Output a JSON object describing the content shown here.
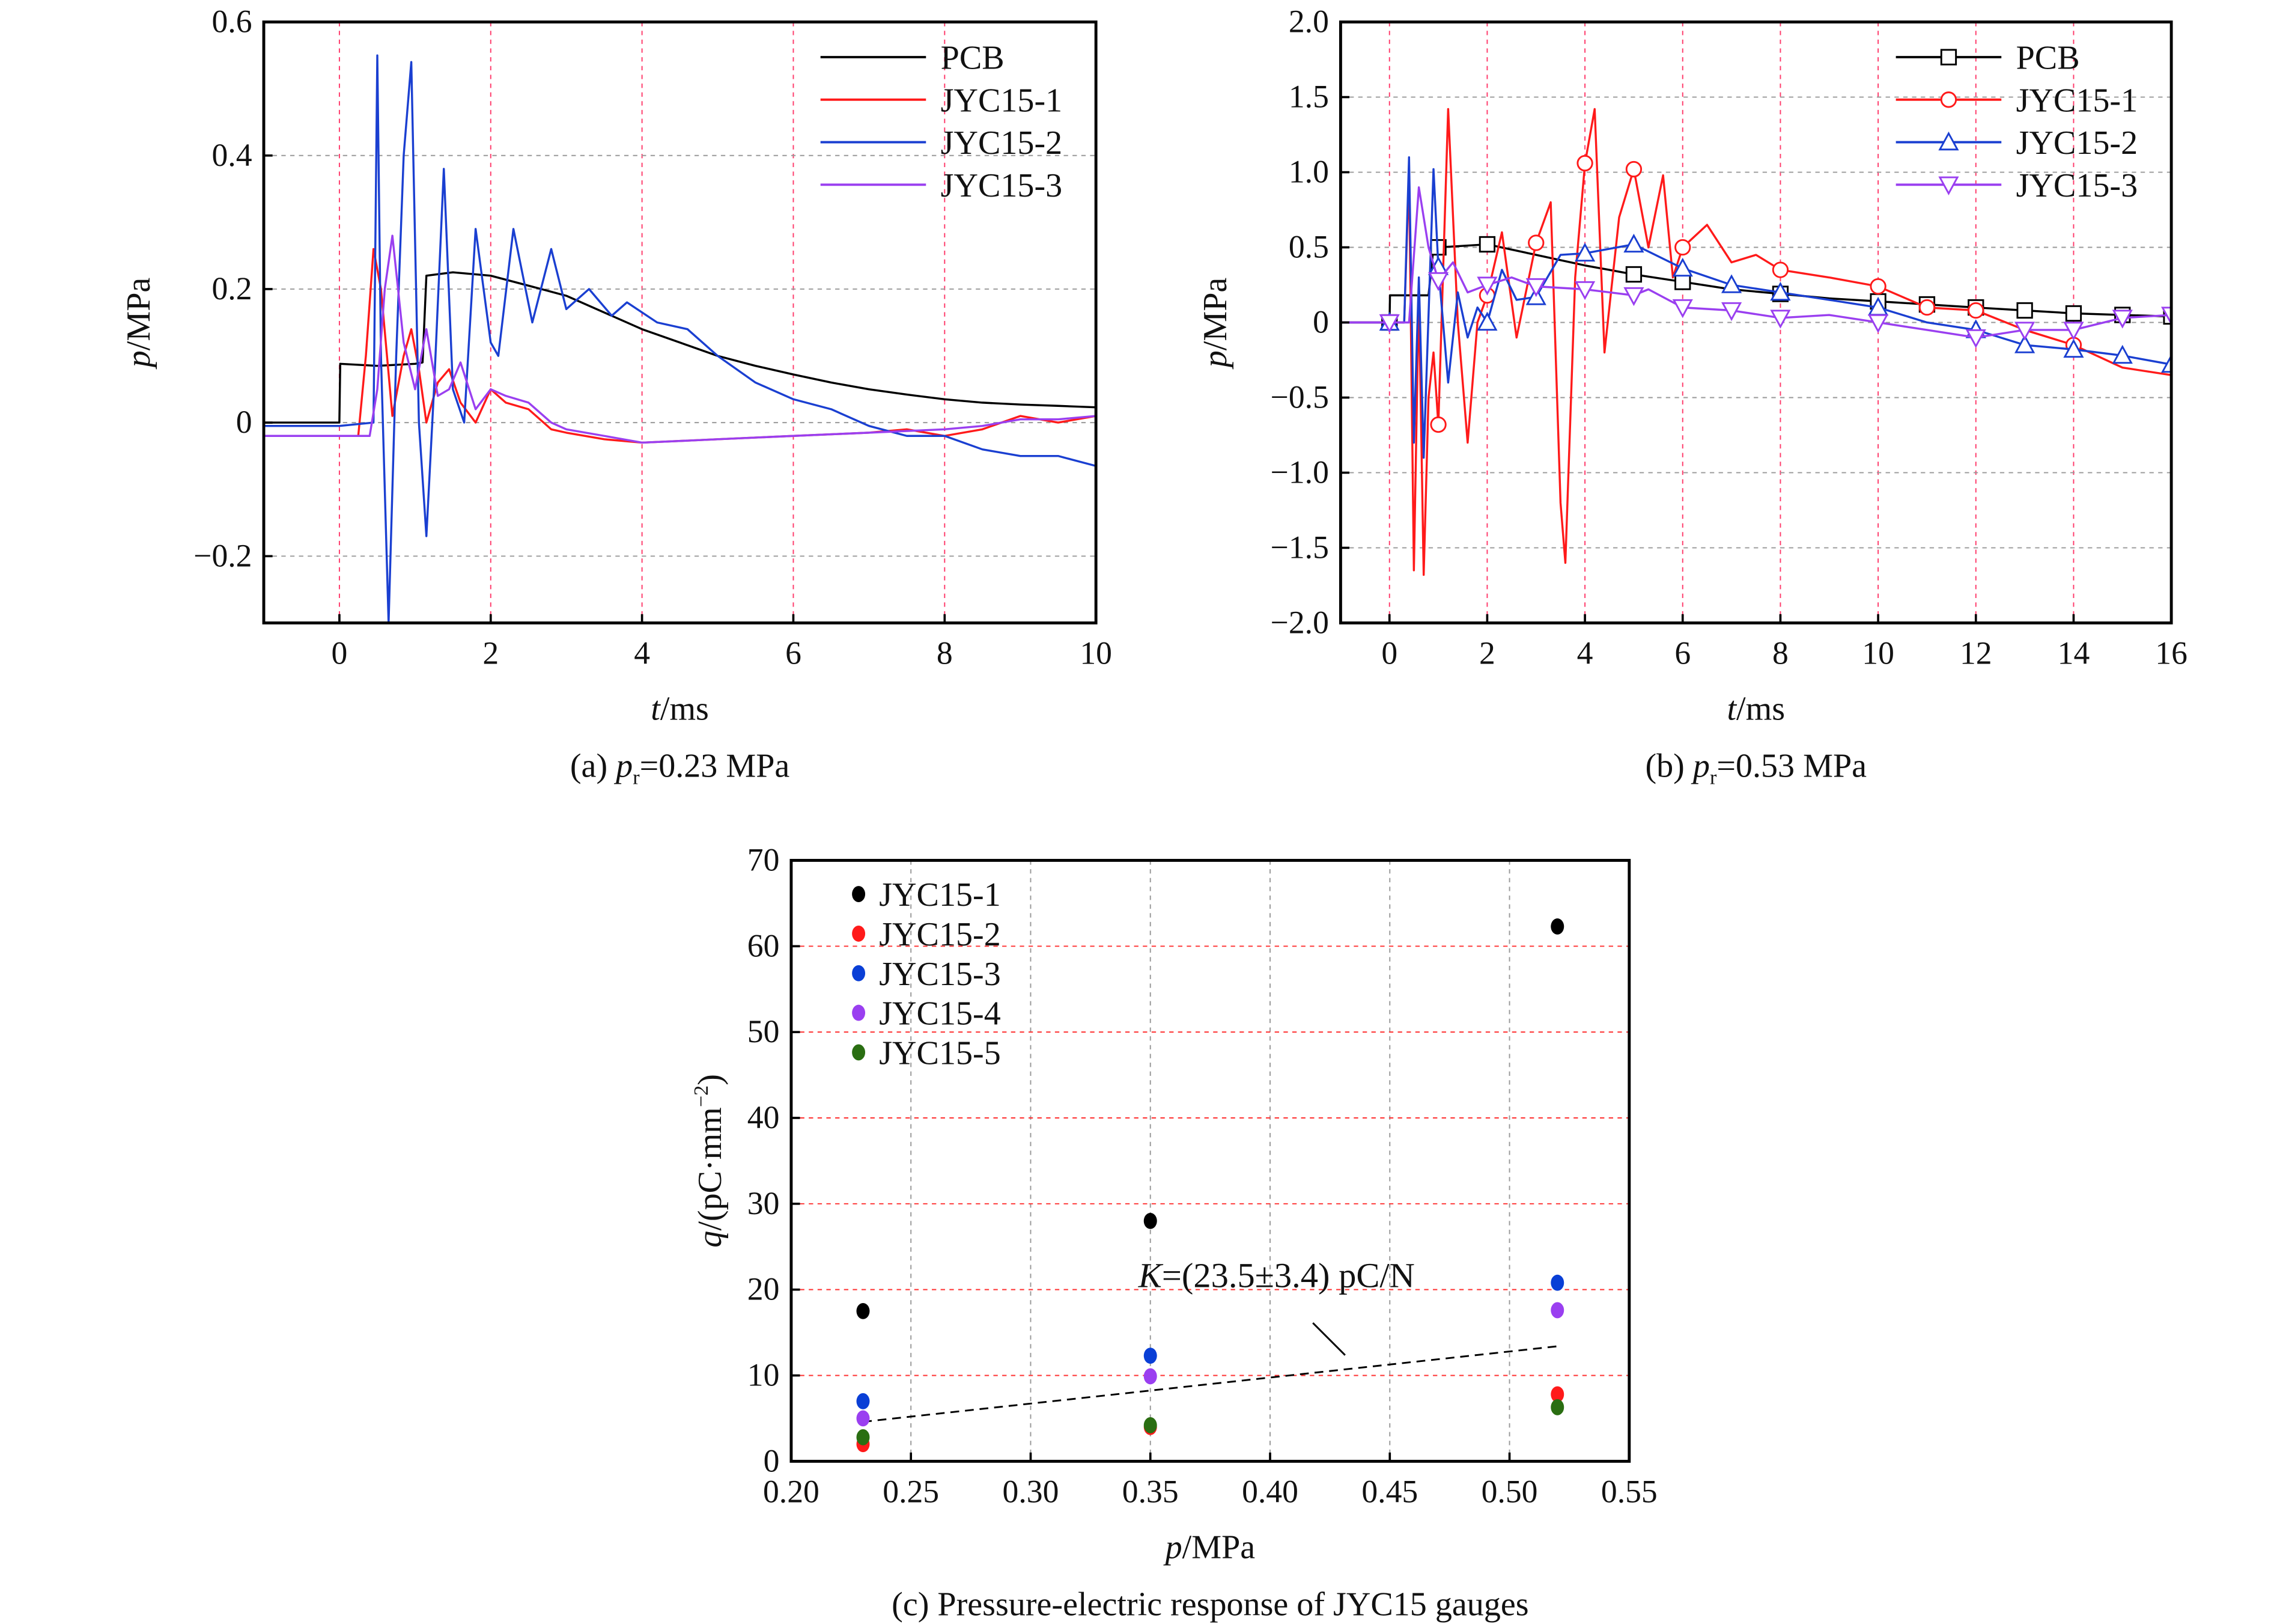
{
  "chart_data": [
    {
      "id": "a",
      "type": "line",
      "caption": "(a) p_r=0.23 MPa",
      "caption_parts": {
        "prefix": "(a) ",
        "var": "p",
        "sub": "r",
        "suffix": "=0.23 MPa"
      },
      "xlabel": {
        "var": "t",
        "unit": "/ms"
      },
      "ylabel": {
        "var": "p",
        "unit": "/MPa"
      },
      "xlim": [
        -1,
        10
      ],
      "ylim": [
        -0.3,
        0.6
      ],
      "xticks": [
        0,
        2,
        4,
        6,
        8,
        10
      ],
      "xtick_labels": [
        "0",
        "2",
        "4",
        "6",
        "8",
        "10"
      ],
      "yticks": [
        -0.2,
        0,
        0.2,
        0.4,
        0.6
      ],
      "ytick_labels": [
        "−0.2",
        "0",
        "0.2",
        "0.4",
        "0.6"
      ],
      "grid": true,
      "legend": "top-right",
      "series": [
        {
          "name": "PCB",
          "color": "#000000",
          "marker": "none",
          "x": [
            -1,
            0,
            0.01,
            0.5,
            1.0,
            1.1,
            1.15,
            1.5,
            2.0,
            2.5,
            3.0,
            3.5,
            4.0,
            4.5,
            5.0,
            5.5,
            6.0,
            6.5,
            7.0,
            7.5,
            8.0,
            8.5,
            9.0,
            9.5,
            10.0
          ],
          "y": [
            0.0,
            0.0,
            0.088,
            0.085,
            0.088,
            0.09,
            0.22,
            0.225,
            0.22,
            0.205,
            0.19,
            0.165,
            0.14,
            0.12,
            0.1,
            0.085,
            0.072,
            0.06,
            0.05,
            0.042,
            0.035,
            0.03,
            0.027,
            0.025,
            0.023
          ]
        },
        {
          "name": "JYC15-1",
          "color": "#ff1a1a",
          "marker": "none",
          "x": [
            -1,
            0,
            0.25,
            0.35,
            0.45,
            0.55,
            0.7,
            0.85,
            0.95,
            1.05,
            1.15,
            1.3,
            1.45,
            1.6,
            1.8,
            2.0,
            2.2,
            2.5,
            2.8,
            3.0,
            3.5,
            4.0,
            5.0,
            6.0,
            7.0,
            7.5,
            8.0,
            8.5,
            9.0,
            9.5,
            10.0
          ],
          "y": [
            -0.02,
            -0.02,
            -0.02,
            0.1,
            0.26,
            0.2,
            0.01,
            0.1,
            0.14,
            0.08,
            0.0,
            0.06,
            0.08,
            0.03,
            0.0,
            0.05,
            0.03,
            0.02,
            -0.01,
            -0.015,
            -0.025,
            -0.03,
            -0.025,
            -0.02,
            -0.015,
            -0.01,
            -0.02,
            -0.01,
            0.01,
            0.0,
            0.01
          ]
        },
        {
          "name": "JYC15-2",
          "color": "#1a3fd1",
          "marker": "none",
          "x": [
            -1,
            0,
            0.45,
            0.5,
            0.55,
            0.65,
            0.75,
            0.85,
            0.95,
            1.05,
            1.15,
            1.25,
            1.38,
            1.5,
            1.65,
            1.8,
            2.0,
            2.1,
            2.3,
            2.55,
            2.8,
            3.0,
            3.3,
            3.6,
            3.8,
            4.2,
            4.6,
            5.0,
            5.5,
            6.0,
            6.5,
            7.0,
            7.5,
            8.0,
            8.5,
            9.0,
            9.5,
            10.0
          ],
          "y": [
            -0.005,
            -0.005,
            0.0,
            0.55,
            0.1,
            -0.3,
            0.1,
            0.4,
            0.54,
            0.0,
            -0.17,
            0.05,
            0.38,
            0.05,
            0.0,
            0.29,
            0.12,
            0.1,
            0.29,
            0.15,
            0.26,
            0.17,
            0.2,
            0.16,
            0.18,
            0.15,
            0.14,
            0.1,
            0.06,
            0.035,
            0.02,
            -0.005,
            -0.02,
            -0.02,
            -0.04,
            -0.05,
            -0.05,
            -0.065
          ]
        },
        {
          "name": "JYC15-3",
          "color": "#9a3ff0",
          "marker": "none",
          "x": [
            -1,
            0,
            0.4,
            0.5,
            0.6,
            0.7,
            0.85,
            1.0,
            1.15,
            1.3,
            1.45,
            1.6,
            1.8,
            2.0,
            2.2,
            2.5,
            2.8,
            3.0,
            3.5,
            4.0,
            5.0,
            6.0,
            7.0,
            8.0,
            8.5,
            9.0,
            9.5,
            10.0
          ],
          "y": [
            -0.02,
            -0.02,
            -0.02,
            0.05,
            0.2,
            0.28,
            0.12,
            0.05,
            0.14,
            0.04,
            0.05,
            0.09,
            0.02,
            0.05,
            0.04,
            0.03,
            0.0,
            -0.01,
            -0.02,
            -0.03,
            -0.025,
            -0.02,
            -0.015,
            -0.01,
            -0.005,
            0.005,
            0.005,
            0.01
          ]
        }
      ]
    },
    {
      "id": "b",
      "type": "line",
      "caption": "(b) p_r=0.53 MPa",
      "caption_parts": {
        "prefix": "(b) ",
        "var": "p",
        "sub": "r",
        "suffix": "=0.53 MPa"
      },
      "xlabel": {
        "var": "t",
        "unit": "/ms"
      },
      "ylabel": {
        "var": "p",
        "unit": "/MPa"
      },
      "xlim": [
        -1,
        16
      ],
      "ylim": [
        -2.0,
        2.0
      ],
      "xticks": [
        0,
        2,
        4,
        6,
        8,
        10,
        12,
        14,
        16
      ],
      "xtick_labels": [
        "0",
        "2",
        "4",
        "6",
        "8",
        "10",
        "12",
        "14",
        "16"
      ],
      "yticks": [
        -2.0,
        -1.5,
        -1.0,
        -0.5,
        0,
        0.5,
        1.0,
        1.5,
        2.0
      ],
      "ytick_labels": [
        "−2.0",
        "−1.5",
        "−1.0",
        "−0.5",
        "0",
        "0.5",
        "1.0",
        "1.5",
        "2.0"
      ],
      "grid": true,
      "legend": "top-right",
      "series": [
        {
          "name": "PCB",
          "color": "#000000",
          "marker": "square",
          "x": [
            -1,
            0,
            0.01,
            0.8,
            0.9,
            1,
            2,
            3,
            4,
            5,
            6,
            7,
            8,
            9,
            10,
            11,
            12,
            13,
            14,
            15,
            16
          ],
          "y": [
            0.0,
            0.0,
            0.18,
            0.18,
            0.5,
            0.5,
            0.52,
            0.45,
            0.38,
            0.32,
            0.27,
            0.22,
            0.19,
            0.16,
            0.14,
            0.12,
            0.1,
            0.08,
            0.06,
            0.05,
            0.04
          ],
          "marker_x": [
            0,
            1,
            2,
            5,
            6,
            8,
            10,
            11,
            12,
            13,
            14,
            15,
            16
          ]
        },
        {
          "name": "JYC15-1",
          "color": "#ff1a1a",
          "marker": "circle",
          "x": [
            -1,
            0,
            0.3,
            0.4,
            0.5,
            0.6,
            0.7,
            0.8,
            0.9,
            1.0,
            1.2,
            1.4,
            1.6,
            1.8,
            2.0,
            2.3,
            2.6,
            3.0,
            3.3,
            3.5,
            3.6,
            3.8,
            4.0,
            4.2,
            4.4,
            4.7,
            5.0,
            5.3,
            5.6,
            5.8,
            6.0,
            6.5,
            7.0,
            7.5,
            8.0,
            9.0,
            10.0,
            11.0,
            12.0,
            13.0,
            14.0,
            15.0,
            16.0
          ],
          "y": [
            0.0,
            0.0,
            0.0,
            1.0,
            -1.65,
            0.2,
            -1.68,
            -0.5,
            -0.2,
            -0.68,
            1.42,
            0.0,
            -0.8,
            0.0,
            0.18,
            0.6,
            -0.1,
            0.53,
            0.8,
            -1.2,
            -1.6,
            0.3,
            1.06,
            1.42,
            -0.2,
            0.7,
            1.02,
            0.5,
            0.98,
            0.3,
            0.5,
            0.65,
            0.4,
            0.45,
            0.35,
            0.3,
            0.24,
            0.1,
            0.08,
            -0.05,
            -0.15,
            -0.3,
            -0.35
          ],
          "marker_x": [
            1,
            2,
            3,
            4,
            5,
            6,
            8,
            10,
            11,
            12,
            14
          ]
        },
        {
          "name": "JYC15-2",
          "color": "#1a3fd1",
          "marker": "triangle-up",
          "x": [
            -1,
            0,
            0.3,
            0.4,
            0.5,
            0.6,
            0.7,
            0.9,
            1.0,
            1.2,
            1.4,
            1.6,
            1.8,
            2.0,
            2.3,
            2.6,
            3.0,
            3.5,
            4.0,
            5.0,
            6.0,
            7.0,
            8.0,
            9.0,
            10.0,
            11.0,
            12.0,
            13.0,
            14.0,
            15.0,
            16.0
          ],
          "y": [
            0.0,
            0.0,
            0.0,
            1.1,
            -0.8,
            0.3,
            -0.9,
            1.02,
            0.37,
            -0.4,
            0.2,
            -0.1,
            0.1,
            0.0,
            0.35,
            0.15,
            0.17,
            0.45,
            0.46,
            0.52,
            0.36,
            0.25,
            0.2,
            0.15,
            0.1,
            0.0,
            -0.05,
            -0.15,
            -0.18,
            -0.22,
            -0.28
          ],
          "marker_x": [
            0,
            1,
            2,
            3,
            4,
            5,
            6,
            7,
            8,
            10,
            12,
            13,
            14,
            15,
            16
          ]
        },
        {
          "name": "JYC15-3",
          "color": "#9a3ff0",
          "marker": "triangle-down",
          "x": [
            -1,
            0,
            0.4,
            0.6,
            0.8,
            1.0,
            1.3,
            1.6,
            2.0,
            2.5,
            3.0,
            4.0,
            5.0,
            5.3,
            6.0,
            7.0,
            8.0,
            9.0,
            10.0,
            11.0,
            12.0,
            13.0,
            14.0,
            15.0,
            16.0
          ],
          "y": [
            0.0,
            0.0,
            0.0,
            0.9,
            0.5,
            0.28,
            0.4,
            0.2,
            0.25,
            0.3,
            0.24,
            0.22,
            0.18,
            0.22,
            0.1,
            0.08,
            0.03,
            0.05,
            0.0,
            -0.05,
            -0.1,
            -0.05,
            -0.05,
            0.03,
            0.05
          ],
          "marker_x": [
            0,
            1,
            2,
            3,
            4,
            5,
            6,
            7,
            8,
            10,
            12,
            13,
            14,
            15,
            16
          ]
        }
      ]
    },
    {
      "id": "c",
      "type": "scatter",
      "caption": "(c) Pressure-electric response of JYC15 gauges",
      "xlabel": {
        "var": "p",
        "unit": "/MPa"
      },
      "ylabel": {
        "var": "q",
        "unit": "/(pC·mm",
        "sup": "−2",
        "close": ")"
      },
      "xlim": [
        0.2,
        0.55
      ],
      "ylim": [
        0,
        70
      ],
      "xticks": [
        0.2,
        0.25,
        0.3,
        0.35,
        0.4,
        0.45,
        0.5,
        0.55
      ],
      "xtick_labels": [
        "0.20",
        "0.25",
        "0.30",
        "0.35",
        "0.40",
        "0.45",
        "0.50",
        "0.55"
      ],
      "yticks": [
        0,
        10,
        20,
        30,
        40,
        50,
        60,
        70
      ],
      "ytick_labels": [
        "0",
        "10",
        "20",
        "30",
        "40",
        "50",
        "60",
        "70"
      ],
      "grid": true,
      "legend": "top-left",
      "x": [
        0.23,
        0.35,
        0.52
      ],
      "series": [
        {
          "name": "JYC15-1",
          "color": "#000000",
          "values": [
            17.5,
            28.0,
            62.3
          ]
        },
        {
          "name": "JYC15-2",
          "color": "#ff1a1a",
          "values": [
            2.0,
            4.0,
            7.8
          ]
        },
        {
          "name": "JYC15-3",
          "color": "#0a3fd6",
          "values": [
            7.0,
            12.3,
            20.8
          ]
        },
        {
          "name": "JYC15-4",
          "color": "#9a3ff0",
          "values": [
            5.0,
            9.9,
            17.6
          ]
        },
        {
          "name": "JYC15-5",
          "color": "#2a6e12",
          "values": [
            2.8,
            4.2,
            6.3
          ]
        }
      ],
      "fit_line": {
        "x": [
          0.23,
          0.52
        ],
        "y": [
          4.6,
          13.4
        ],
        "style": "dashed",
        "color": "#000000"
      },
      "annotation": {
        "var": "K",
        "text": "=(23.5±3.4) pC/N",
        "points_to": [
          0.435,
          11.0
        ]
      }
    }
  ]
}
